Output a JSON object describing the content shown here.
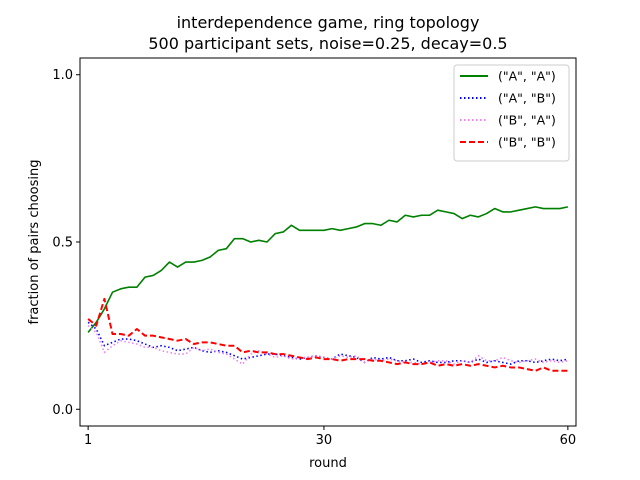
{
  "chart_data": {
    "type": "line",
    "title": "interdependence game, ring topology",
    "subtitle": "500 participant sets, noise=0.25, decay=0.5",
    "xlabel": "round",
    "ylabel": "fraction of pairs choosing",
    "xlim": [
      0,
      61
    ],
    "ylim": [
      -0.05,
      1.05
    ],
    "xticks": [
      1,
      30,
      60
    ],
    "yticks": [
      "0.0",
      "0.5",
      "1.0"
    ],
    "grid": false,
    "legend_position": "top-right",
    "x": [
      1,
      2,
      3,
      4,
      5,
      6,
      7,
      8,
      9,
      10,
      11,
      12,
      13,
      14,
      15,
      16,
      17,
      18,
      19,
      20,
      21,
      22,
      23,
      24,
      25,
      26,
      27,
      28,
      29,
      30,
      31,
      32,
      33,
      34,
      35,
      36,
      37,
      38,
      39,
      40,
      41,
      42,
      43,
      44,
      45,
      46,
      47,
      48,
      49,
      50,
      51,
      52,
      53,
      54,
      55,
      56,
      57,
      58,
      59,
      60
    ],
    "series": [
      {
        "name": "(\"A\", \"A\")",
        "color": "#008000",
        "style": "solid",
        "values": [
          0.23,
          0.26,
          0.3,
          0.35,
          0.36,
          0.365,
          0.365,
          0.395,
          0.4,
          0.415,
          0.44,
          0.425,
          0.44,
          0.44,
          0.445,
          0.455,
          0.475,
          0.48,
          0.51,
          0.51,
          0.5,
          0.505,
          0.5,
          0.525,
          0.53,
          0.55,
          0.535,
          0.535,
          0.535,
          0.535,
          0.54,
          0.535,
          0.54,
          0.545,
          0.555,
          0.555,
          0.55,
          0.565,
          0.56,
          0.58,
          0.575,
          0.58,
          0.58,
          0.595,
          0.59,
          0.585,
          0.57,
          0.58,
          0.575,
          0.585,
          0.6,
          0.59,
          0.59,
          0.595,
          0.6,
          0.605,
          0.6,
          0.6,
          0.6,
          0.605
        ]
      },
      {
        "name": "(\"A\", \"B\")",
        "color": "#0000ff",
        "style": "dotted",
        "values": [
          0.26,
          0.24,
          0.19,
          0.2,
          0.21,
          0.21,
          0.205,
          0.195,
          0.185,
          0.19,
          0.185,
          0.175,
          0.18,
          0.185,
          0.175,
          0.17,
          0.175,
          0.17,
          0.16,
          0.15,
          0.155,
          0.16,
          0.165,
          0.165,
          0.16,
          0.155,
          0.15,
          0.155,
          0.16,
          0.155,
          0.15,
          0.165,
          0.16,
          0.155,
          0.14,
          0.155,
          0.15,
          0.155,
          0.145,
          0.145,
          0.15,
          0.14,
          0.145,
          0.14,
          0.14,
          0.145,
          0.145,
          0.14,
          0.15,
          0.14,
          0.145,
          0.14,
          0.135,
          0.145,
          0.145,
          0.14,
          0.145,
          0.15,
          0.145,
          0.15
        ]
      },
      {
        "name": "(\"B\", \"A\")",
        "color": "#ee82ee",
        "style": "dotted",
        "values": [
          0.25,
          0.23,
          0.17,
          0.19,
          0.205,
          0.2,
          0.195,
          0.185,
          0.185,
          0.175,
          0.17,
          0.165,
          0.165,
          0.185,
          0.175,
          0.18,
          0.17,
          0.165,
          0.15,
          0.135,
          0.165,
          0.175,
          0.165,
          0.155,
          0.16,
          0.15,
          0.155,
          0.155,
          0.16,
          0.155,
          0.15,
          0.16,
          0.155,
          0.16,
          0.14,
          0.15,
          0.145,
          0.15,
          0.145,
          0.14,
          0.14,
          0.135,
          0.14,
          0.145,
          0.145,
          0.135,
          0.145,
          0.14,
          0.16,
          0.145,
          0.145,
          0.155,
          0.145,
          0.14,
          0.145,
          0.15,
          0.14,
          0.145,
          0.14,
          0.145
        ]
      },
      {
        "name": "(\"B\", \"B\")",
        "color": "#ff0000",
        "style": "dashed",
        "values": [
          0.27,
          0.25,
          0.33,
          0.225,
          0.225,
          0.22,
          0.24,
          0.22,
          0.22,
          0.215,
          0.21,
          0.205,
          0.21,
          0.195,
          0.2,
          0.2,
          0.195,
          0.19,
          0.19,
          0.17,
          0.175,
          0.17,
          0.17,
          0.165,
          0.165,
          0.16,
          0.155,
          0.15,
          0.155,
          0.15,
          0.15,
          0.145,
          0.15,
          0.15,
          0.15,
          0.145,
          0.145,
          0.14,
          0.135,
          0.14,
          0.135,
          0.135,
          0.14,
          0.13,
          0.135,
          0.13,
          0.135,
          0.13,
          0.135,
          0.13,
          0.125,
          0.13,
          0.125,
          0.125,
          0.12,
          0.115,
          0.125,
          0.115,
          0.115,
          0.115
        ]
      }
    ]
  }
}
